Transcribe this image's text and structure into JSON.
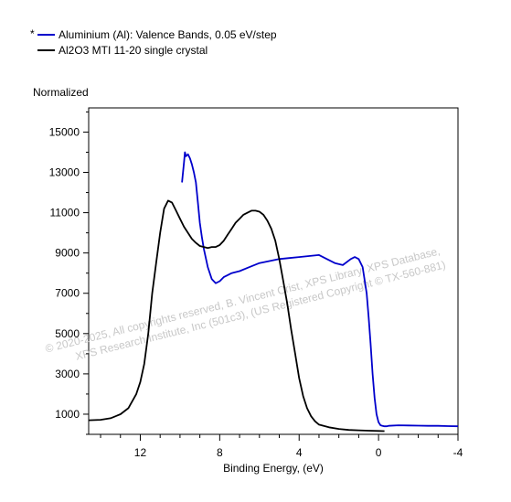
{
  "chart_data": {
    "type": "line",
    "title": "",
    "xlabel": "Binding Energy, (eV)",
    "ylabel": "Normalized",
    "xlim": [
      14.6,
      -4.0
    ],
    "ylim": [
      0,
      16200
    ],
    "x_reversed": true,
    "xticks": [
      12,
      8,
      4,
      0,
      -4
    ],
    "xtick_labels": [
      "12",
      "8",
      "4",
      "0",
      "-4"
    ],
    "yticks": [
      1000,
      3000,
      5000,
      7000,
      9000,
      11000,
      13000,
      15000
    ],
    "ytick_labels": [
      "1000",
      "3000",
      "5000",
      "7000",
      "9000",
      "11000",
      "13000",
      "15000"
    ],
    "grid": false,
    "legend_position": "top-left",
    "legend_marker": "*",
    "watermark": [
      "©  2020-2025,  All copyrights reserved,  B. Vincent Crist,  XPS Library, XPS Database,",
      "XPS Research Institute, Inc (501c3),  (US Registered Copyright © TX-560-881)"
    ],
    "series": [
      {
        "name": "Aluminium (Al): Valence Bands, 0.05 eV/step",
        "color": "#0000cc",
        "x": [
          9.9,
          9.85,
          9.8,
          9.75,
          9.7,
          9.6,
          9.5,
          9.4,
          9.3,
          9.2,
          9.1,
          9.0,
          8.9,
          8.8,
          8.6,
          8.4,
          8.2,
          8.0,
          7.8,
          7.6,
          7.4,
          7.0,
          6.5,
          6.0,
          5.5,
          5.0,
          4.5,
          4.0,
          3.5,
          3.0,
          2.6,
          2.2,
          1.8,
          1.4,
          1.2,
          1.0,
          0.8,
          0.6,
          0.5,
          0.4,
          0.3,
          0.2,
          0.1,
          0.0,
          -0.1,
          -0.2,
          -0.3,
          -0.4,
          -0.5,
          -1.0,
          -1.5,
          -2.0,
          -2.5,
          -3.0,
          -3.5,
          -4.0
        ],
        "y": [
          12500,
          13000,
          13500,
          14000,
          13800,
          13900,
          13700,
          13400,
          13000,
          12500,
          11500,
          10500,
          9800,
          9200,
          8300,
          7700,
          7500,
          7600,
          7800,
          7900,
          8000,
          8100,
          8300,
          8500,
          8600,
          8700,
          8750,
          8800,
          8850,
          8900,
          8700,
          8500,
          8400,
          8700,
          8800,
          8700,
          8300,
          7000,
          5800,
          4500,
          3000,
          1800,
          1000,
          600,
          450,
          420,
          400,
          400,
          420,
          450,
          440,
          430,
          420,
          420,
          410,
          400
        ]
      },
      {
        "name": "Al2O3 MTI 11-20 single crystal",
        "color": "#000000",
        "x": [
          14.6,
          14.0,
          13.5,
          13.0,
          12.6,
          12.2,
          12.0,
          11.8,
          11.6,
          11.4,
          11.2,
          11.0,
          10.8,
          10.6,
          10.4,
          10.2,
          10.0,
          9.8,
          9.6,
          9.4,
          9.2,
          9.0,
          8.8,
          8.6,
          8.4,
          8.2,
          8.0,
          7.8,
          7.6,
          7.4,
          7.2,
          7.0,
          6.8,
          6.6,
          6.4,
          6.2,
          6.0,
          5.8,
          5.6,
          5.4,
          5.2,
          5.0,
          4.8,
          4.6,
          4.4,
          4.2,
          4.0,
          3.8,
          3.6,
          3.4,
          3.2,
          3.0,
          2.5,
          2.0,
          1.5,
          1.0,
          0.5,
          0.0,
          -0.3
        ],
        "y": [
          700,
          720,
          800,
          1000,
          1300,
          2000,
          2600,
          3500,
          5000,
          7000,
          8500,
          10000,
          11200,
          11600,
          11500,
          11100,
          10700,
          10300,
          10000,
          9700,
          9500,
          9350,
          9300,
          9250,
          9300,
          9300,
          9400,
          9600,
          9900,
          10200,
          10500,
          10700,
          10900,
          11000,
          11100,
          11100,
          11050,
          10900,
          10600,
          10200,
          9600,
          8700,
          7600,
          6500,
          5200,
          4000,
          2800,
          1900,
          1300,
          900,
          650,
          480,
          350,
          270,
          220,
          200,
          180,
          170,
          160
        ]
      }
    ]
  }
}
